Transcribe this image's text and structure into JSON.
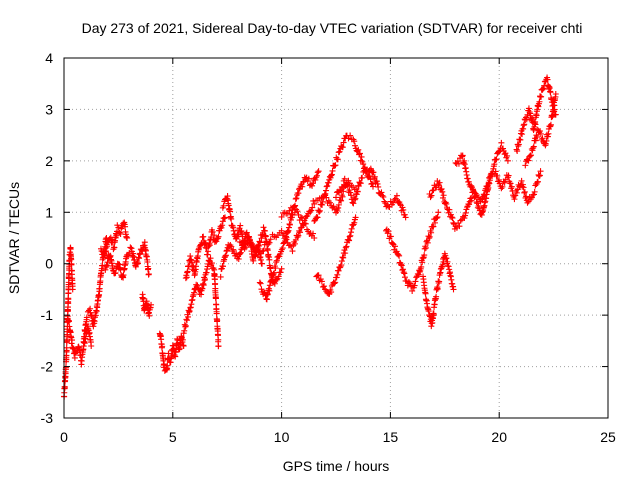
{
  "chart_data": {
    "type": "scatter",
    "title": "Day 273 of 2021, Sidereal Day-to-day VTEC variation (SDTVAR) for receiver chti",
    "xlabel": "GPS time / hours",
    "ylabel": "SDTVAR / TECUs",
    "xlim": [
      0,
      25
    ],
    "ylim": [
      -3,
      4
    ],
    "x_ticks": [
      "0",
      "5",
      "10",
      "15",
      "20",
      "25"
    ],
    "y_ticks": [
      "-3",
      "-2",
      "-1",
      "0",
      "1",
      "2",
      "3",
      "4"
    ],
    "grid": true,
    "marker": "+",
    "series": [
      {
        "name": "SDTVAR",
        "color": "#ff0000",
        "segments": [
          {
            "x": [
              0.0,
              0.05,
              0.1,
              0.15,
              0.2,
              0.25,
              0.3,
              0.35,
              0.4
            ],
            "y": [
              -2.6,
              -2.3,
              -1.9,
              -1.3,
              -0.6,
              0.1,
              0.3,
              -0.1,
              -0.5
            ]
          },
          {
            "x": [
              0.2,
              0.35,
              0.5,
              0.65,
              0.8,
              0.95,
              1.1,
              1.25
            ],
            "y": [
              -1.1,
              -1.5,
              -1.8,
              -1.6,
              -1.9,
              -1.5,
              -1.2,
              -1.6
            ]
          },
          {
            "x": [
              0.9,
              1.05,
              1.2,
              1.35,
              1.5,
              1.6,
              1.7,
              1.8,
              1.95
            ],
            "y": [
              -1.5,
              -1.0,
              -0.9,
              -1.2,
              -0.9,
              -0.6,
              -0.2,
              0.1,
              0.5
            ]
          },
          {
            "x": [
              1.7,
              1.85,
              2.0,
              2.15,
              2.3,
              2.45,
              2.6,
              2.75,
              2.9
            ],
            "y": [
              0.3,
              0.1,
              0.4,
              0.5,
              0.3,
              0.7,
              0.6,
              0.8,
              0.5
            ]
          },
          {
            "x": [
              1.9,
              2.1,
              2.3,
              2.5,
              2.7,
              2.9,
              3.1,
              3.3,
              3.5,
              3.7,
              3.9
            ],
            "y": [
              -0.1,
              0.2,
              -0.2,
              0.0,
              -0.3,
              0.2,
              0.3,
              -0.1,
              0.2,
              0.4,
              -0.2
            ]
          },
          {
            "x": [
              3.6,
              3.7,
              3.8,
              3.9,
              4.0
            ],
            "y": [
              -0.6,
              -0.9,
              -0.7,
              -1.0,
              -0.8
            ]
          },
          {
            "x": [
              4.4,
              4.5,
              4.6,
              4.7,
              4.8,
              4.9,
              5.0,
              5.1,
              5.2,
              5.3,
              5.4,
              5.5
            ],
            "y": [
              -1.3,
              -1.6,
              -2.0,
              -2.1,
              -1.8,
              -1.9,
              -1.6,
              -1.8,
              -1.5,
              -1.7,
              -1.4,
              -1.6
            ]
          },
          {
            "x": [
              5.5,
              5.7,
              5.9,
              6.1,
              6.3,
              6.5,
              6.7,
              6.9,
              7.1
            ],
            "y": [
              -1.3,
              -1.0,
              -0.7,
              -0.4,
              -0.6,
              -0.2,
              0.1,
              -0.1,
              -1.6
            ]
          },
          {
            "x": [
              5.6,
              5.8,
              6.0,
              6.2,
              6.4,
              6.6,
              6.8,
              7.0,
              7.2,
              7.4
            ],
            "y": [
              -0.3,
              0.1,
              -0.2,
              0.3,
              0.5,
              0.2,
              0.6,
              0.4,
              0.7,
              0.9
            ]
          },
          {
            "x": [
              7.3,
              7.5,
              7.7,
              7.9,
              8.1,
              8.3,
              8.5,
              8.7,
              8.9,
              9.1
            ],
            "y": [
              1.1,
              1.3,
              0.8,
              0.5,
              0.7,
              0.3,
              0.5,
              0.1,
              0.3,
              0.0
            ]
          },
          {
            "x": [
              7.2,
              7.6,
              8.0,
              8.4,
              8.8,
              9.2,
              9.6,
              10.0
            ],
            "y": [
              -0.2,
              0.4,
              0.1,
              0.6,
              0.2,
              0.7,
              -0.4,
              -0.1
            ]
          },
          {
            "x": [
              8.0,
              8.5,
              9.0,
              9.5,
              10.0,
              10.5,
              11.0,
              11.5
            ],
            "y": [
              0.5,
              0.4,
              0.2,
              0.5,
              0.6,
              0.3,
              0.8,
              0.5
            ]
          },
          {
            "x": [
              9.0,
              9.3,
              9.6,
              9.9,
              10.2,
              10.5,
              10.8,
              11.1,
              11.4,
              11.7
            ],
            "y": [
              -0.4,
              -0.7,
              -0.2,
              0.2,
              0.5,
              1.0,
              1.4,
              1.7,
              1.5,
              1.8
            ]
          },
          {
            "x": [
              10.0,
              10.5,
              11.0,
              11.5,
              12.0,
              12.5,
              13.0,
              13.5
            ],
            "y": [
              0.9,
              1.1,
              0.8,
              1.2,
              1.3,
              1.0,
              1.6,
              1.4
            ]
          },
          {
            "x": [
              11.5,
              11.8,
              12.1,
              12.4,
              12.7,
              13.0,
              13.3,
              13.6,
              13.9,
              14.2
            ],
            "y": [
              0.8,
              1.1,
              1.5,
              1.9,
              2.2,
              2.5,
              2.4,
              2.1,
              1.8,
              1.5
            ]
          },
          {
            "x": [
              11.6,
              11.9,
              12.2,
              12.5,
              12.8,
              13.1,
              13.4
            ],
            "y": [
              -0.2,
              -0.4,
              -0.6,
              -0.3,
              0.1,
              0.5,
              0.9
            ]
          },
          {
            "x": [
              12.5,
              12.9,
              13.3,
              13.7,
              14.1,
              14.5,
              14.9,
              15.3,
              15.7
            ],
            "y": [
              1.3,
              1.6,
              1.2,
              1.7,
              1.9,
              1.4,
              1.1,
              1.3,
              0.9
            ]
          },
          {
            "x": [
              14.8,
              15.1,
              15.4,
              15.7,
              16.0,
              16.3,
              16.6,
              16.9,
              17.2
            ],
            "y": [
              0.7,
              0.4,
              0.1,
              -0.3,
              -0.5,
              -0.2,
              0.3,
              0.7,
              1.0
            ]
          },
          {
            "x": [
              16.5,
              16.7,
              16.9,
              17.1,
              17.3,
              17.5,
              17.7,
              17.9
            ],
            "y": [
              -0.3,
              -0.8,
              -1.2,
              -0.6,
              -0.2,
              0.2,
              -0.1,
              -0.5
            ]
          },
          {
            "x": [
              16.8,
              17.2,
              17.6,
              18.0,
              18.4,
              18.8,
              19.2,
              19.6
            ],
            "y": [
              1.3,
              1.6,
              1.1,
              0.7,
              0.9,
              1.4,
              1.2,
              1.7
            ]
          },
          {
            "x": [
              18.0,
              18.3,
              18.6,
              18.9,
              19.2,
              19.5,
              19.8,
              20.1,
              20.4
            ],
            "y": [
              1.9,
              2.1,
              1.6,
              1.3,
              0.9,
              1.5,
              2.0,
              2.3,
              2.0
            ]
          },
          {
            "x": [
              19.8,
              20.1,
              20.4,
              20.7,
              21.0,
              21.3,
              21.6,
              21.9
            ],
            "y": [
              1.8,
              1.5,
              1.7,
              1.3,
              1.6,
              1.2,
              1.4,
              1.8
            ]
          },
          {
            "x": [
              20.8,
              21.0,
              21.2,
              21.4,
              21.6,
              21.8,
              22.0,
              22.2,
              22.4,
              22.6
            ],
            "y": [
              2.2,
              2.5,
              2.8,
              3.0,
              2.6,
              3.1,
              3.4,
              3.6,
              3.2,
              2.9
            ]
          },
          {
            "x": [
              21.2,
              21.5,
              21.8,
              22.1,
              22.4,
              22.6
            ],
            "y": [
              1.9,
              2.2,
              2.6,
              2.3,
              2.8,
              3.3
            ]
          }
        ]
      }
    ]
  }
}
